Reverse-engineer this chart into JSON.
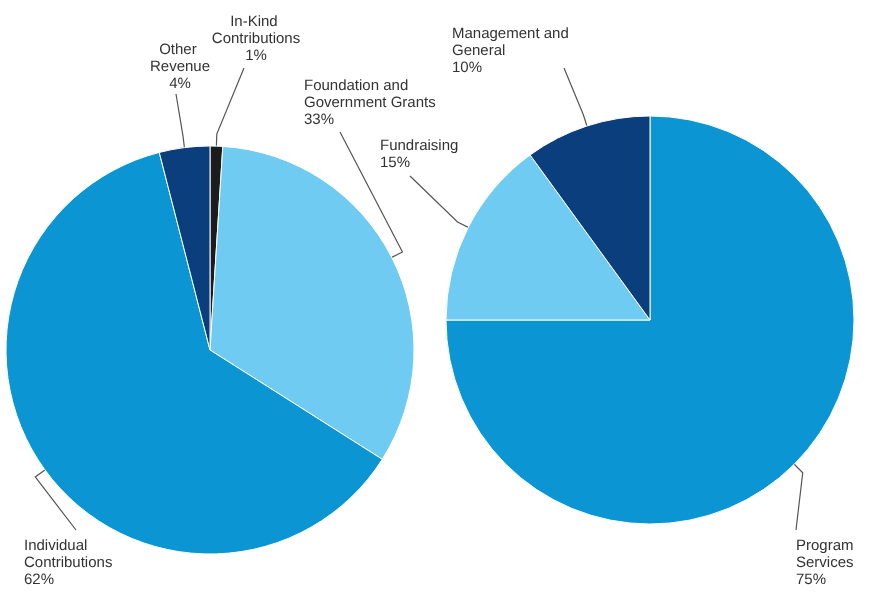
{
  "chart_data": [
    {
      "type": "pie",
      "categories": [
        "In-Kind Contributions",
        "Foundation and Government Grants",
        "Individual Contributions",
        "Other Revenue"
      ],
      "values": [
        1,
        33,
        62,
        4
      ],
      "value_labels": [
        "1%",
        "33%",
        "62%",
        "4%"
      ],
      "colors": [
        "#1c1c1c",
        "#6fcbf1",
        "#0b96d3",
        "#0b3e7c"
      ],
      "legend": false
    },
    {
      "type": "pie",
      "categories": [
        "Program Services",
        "Fundraising",
        "Management and General"
      ],
      "values": [
        75,
        15,
        10
      ],
      "value_labels": [
        "75%",
        "15%",
        "10%"
      ],
      "colors": [
        "#0b96d3",
        "#6fcbf1",
        "#0b3e7c"
      ],
      "legend": false
    }
  ]
}
